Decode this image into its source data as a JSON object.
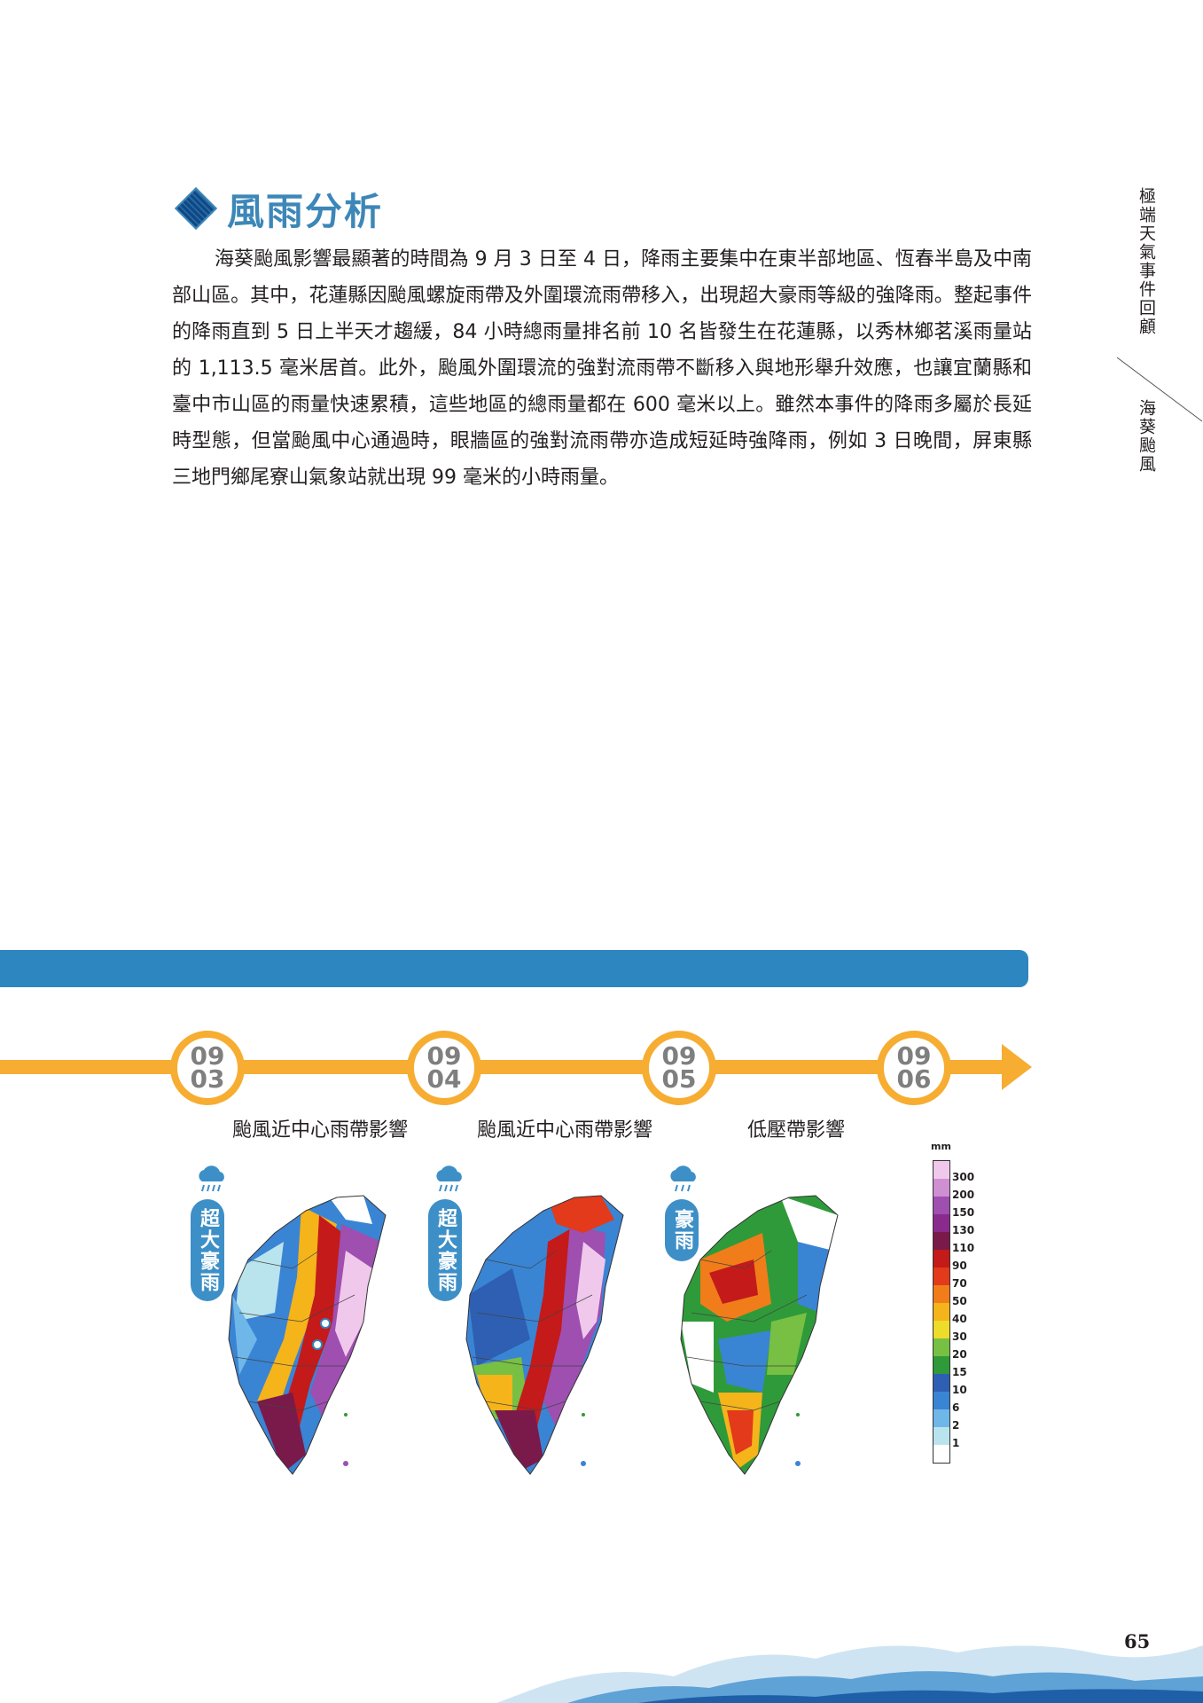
{
  "section": {
    "title": "風雨分析"
  },
  "body_text": "海葵颱風影響最顯著的時間為 9 月 3 日至 4 日，降雨主要集中在東半部地區、恆春半島及中南部山區。其中，花蓮縣因颱風螺旋雨帶及外圍環流雨帶移入，出現超大豪雨等級的強降雨。整起事件的降雨直到 5 日上半天才趨緩，84 小時總雨量排名前 10 名皆發生在花蓮縣，以秀林鄉茗溪雨量站的 1,113.5 毫米居首。此外，颱風外圍環流的強對流雨帶不斷移入與地形舉升效應，也讓宜蘭縣和臺中市山區的雨量快速累積，這些地區的總雨量都在 600 毫米以上。雖然本事件的降雨多屬於長延時型態，但當颱風中心通過時，眼牆區的強對流雨帶亦造成短延時強降雨，例如 3 日晚間，屏東縣三地門鄉尾寮山氣象站就出現 99 毫米的小時雨量。",
  "side_tab": {
    "chapter": "極端天氣事件回顧",
    "event": "海葵颱風"
  },
  "timeline": {
    "dates": [
      {
        "month": "09",
        "day": "03"
      },
      {
        "month": "09",
        "day": "04"
      },
      {
        "month": "09",
        "day": "05"
      },
      {
        "month": "09",
        "day": "06"
      }
    ]
  },
  "panels": [
    {
      "caption": "颱風近中心雨帶影響",
      "badge": "超大豪雨"
    },
    {
      "caption": "颱風近中心雨帶影響",
      "badge": "超大豪雨"
    },
    {
      "caption": "低壓帶影響",
      "badge": "豪雨"
    }
  ],
  "legend": {
    "unit": "mm",
    "levels": [
      "300",
      "200",
      "150",
      "130",
      "110",
      "90",
      "70",
      "50",
      "40",
      "30",
      "20",
      "15",
      "10",
      "6",
      "2",
      "1"
    ],
    "colors": [
      "#f0c8ec",
      "#cf8fd3",
      "#9e4fb0",
      "#8a2a8c",
      "#7a1a4a",
      "#c41a1a",
      "#e23a1a",
      "#f07d1a",
      "#f5b41a",
      "#eedc2a",
      "#77c043",
      "#2f9a3a",
      "#2e5fb3",
      "#3a84d4",
      "#6fb7e8",
      "#b9e4ee",
      "#ffffff"
    ]
  },
  "page_number": "65"
}
